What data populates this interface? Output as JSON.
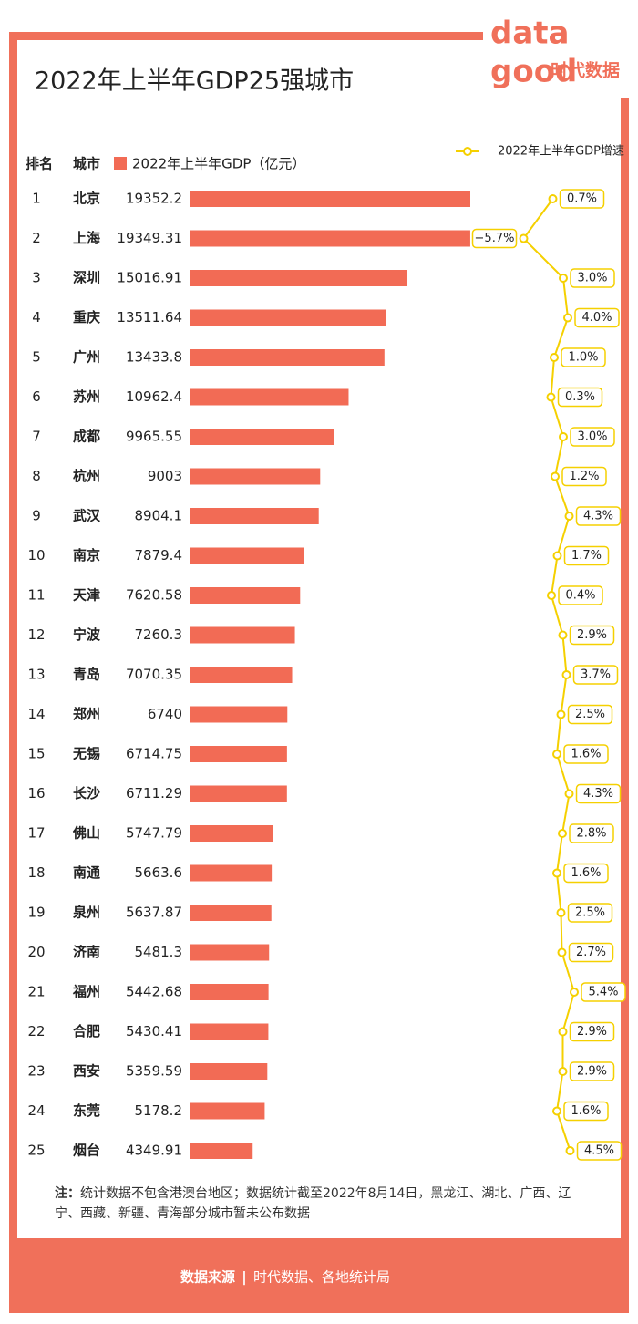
{
  "title": "2022年上半年GDP25强城市",
  "logo": {
    "top": "data",
    "bottom": "good",
    "name": "时代数据"
  },
  "chart_data": {
    "type": "bar",
    "rank_header": "排名",
    "category_header": "城市",
    "ranks": [
      1,
      2,
      3,
      4,
      5,
      6,
      7,
      8,
      9,
      10,
      11,
      12,
      13,
      14,
      15,
      16,
      17,
      18,
      19,
      20,
      21,
      22,
      23,
      24,
      25
    ],
    "categories": [
      "北京",
      "上海",
      "深圳",
      "重庆",
      "广州",
      "苏州",
      "成都",
      "杭州",
      "武汉",
      "南京",
      "天津",
      "宁波",
      "青岛",
      "郑州",
      "无锡",
      "长沙",
      "佛山",
      "南通",
      "泉州",
      "济南",
      "福州",
      "合肥",
      "西安",
      "东莞",
      "烟台"
    ],
    "series": [
      {
        "name": "2022年上半年GDP（亿元）",
        "color": "#f26b55",
        "type": "bar",
        "values": [
          19352.2,
          19349.31,
          15016.91,
          13511.64,
          13433.8,
          10962.4,
          9965.55,
          9003,
          8904.1,
          7879.4,
          7620.58,
          7260.3,
          7070.35,
          6740,
          6714.75,
          6711.29,
          5747.79,
          5663.6,
          5637.87,
          5481.3,
          5442.68,
          5430.41,
          5359.59,
          5178.2,
          4349.91
        ]
      },
      {
        "name": "2022年上半年GDP增速",
        "color": "#f5d000",
        "type": "line",
        "values": [
          0.7,
          -5.7,
          3.0,
          4.0,
          1.0,
          0.3,
          3.0,
          1.2,
          4.3,
          1.7,
          0.4,
          2.9,
          3.7,
          2.5,
          1.6,
          4.3,
          2.8,
          1.6,
          2.5,
          2.7,
          5.4,
          2.9,
          2.9,
          1.6,
          4.5
        ],
        "value_labels": [
          "0.7%",
          "−5.7%",
          "3.0%",
          "4.0%",
          "1.0%",
          "0.3%",
          "3.0%",
          "1.2%",
          "4.3%",
          "1.7%",
          "0.4%",
          "2.9%",
          "3.7%",
          "2.5%",
          "1.6%",
          "4.3%",
          "2.8%",
          "1.6%",
          "2.5%",
          "2.7%",
          "5.4%",
          "2.9%",
          "2.9%",
          "1.6%",
          "4.5%"
        ]
      }
    ]
  },
  "note": {
    "label": "注：",
    "text": "统计数据不包含港澳台地区；数据统计截至2022年8月14日，黑龙江、湖北、广西、辽宁、西藏、新疆、青海部分城市暂未公布数据"
  },
  "footer": {
    "label": "数据来源",
    "separator": "|",
    "text": "时代数据、各地统计局"
  }
}
